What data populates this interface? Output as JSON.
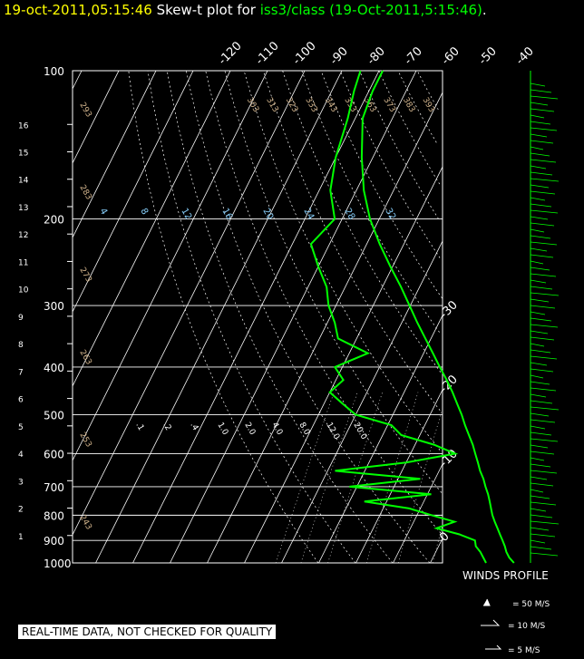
{
  "title": {
    "timestamp": "19-oct-2011,05:15:46",
    "mid": "Skew-t plot for",
    "station": "iss3/class (19-Oct-2011,5:15:46)",
    "end": "."
  },
  "footer": "REAL-TIME DATA, NOT CHECKED FOR QUALITY",
  "winds_profile_label": "WINDS PROFILE",
  "wind_legend": [
    "= 50 M/S",
    "= 10 M/S",
    "= 5 M/S"
  ],
  "colors": {
    "background": "#000000",
    "trace": "#00ff00",
    "title_time": "#ffff00",
    "mixing_ratio_labels": "#87cefa",
    "theta_labels": "#d2b48c",
    "grid": "#ffffff"
  },
  "chart_data": {
    "type": "line",
    "name": "skew-t",
    "pressure_ticks": [
      100,
      200,
      300,
      400,
      500,
      600,
      700,
      800,
      900,
      1000
    ],
    "height_ticks_km": [
      1,
      2,
      3,
      4,
      5,
      6,
      7,
      8,
      9,
      10,
      11,
      12,
      13,
      14,
      15,
      16
    ],
    "top_temp_ticks": [
      "-120",
      "-110",
      "-100",
      "-90",
      "-80",
      "-70",
      "-60",
      "-50",
      "-40"
    ],
    "right_temp_ticks": [
      "-30",
      "-20",
      "-10",
      "0",
      "10",
      "20",
      "30",
      "40"
    ],
    "theta_labels": [
      "303",
      "313",
      "323",
      "333",
      "343",
      "353",
      "363",
      "373",
      "383",
      "393",
      "403",
      "413",
      "423",
      "433",
      "293",
      "283",
      "273",
      "263",
      "253",
      "243"
    ],
    "mixing_ratio_labels": [
      "4",
      "8",
      "12",
      "16",
      "20",
      "24",
      "28",
      "32"
    ],
    "sat_mixing_labels": [
      ".1",
      ".2",
      ".4",
      "1.0",
      "2.0",
      "4.0",
      "8.0",
      "12.0",
      "20.0"
    ],
    "temperature": {
      "p": [
        1000,
        975,
        950,
        925,
        900,
        875,
        850,
        825,
        800,
        775,
        750,
        725,
        700,
        675,
        650,
        625,
        600,
        575,
        550,
        525,
        500,
        475,
        450,
        425,
        400,
        375,
        350,
        325,
        300,
        275,
        250,
        225,
        200,
        175,
        150,
        125,
        110,
        100
      ],
      "t": [
        22.5,
        20.5,
        19,
        17.8,
        16.4,
        14.9,
        13.4,
        11.8,
        10.3,
        9,
        7.7,
        6.3,
        4.6,
        3,
        1,
        -0.7,
        -2.6,
        -4.5,
        -6.8,
        -9.2,
        -11.5,
        -14.2,
        -17,
        -20.2,
        -23.8,
        -27.5,
        -31.5,
        -35.8,
        -40.2,
        -45,
        -50.6,
        -56.5,
        -62.5,
        -68,
        -73,
        -78,
        -79,
        -79
      ]
    },
    "dewpoint": {
      "p": [
        1000,
        950,
        925,
        900,
        875,
        850,
        825,
        800,
        775,
        750,
        725,
        700,
        675,
        650,
        625,
        600,
        575,
        550,
        525,
        500,
        475,
        450,
        425,
        400,
        375,
        350,
        325,
        300,
        275,
        250,
        225,
        200,
        175,
        150,
        125,
        110,
        100
      ],
      "td": [
        15,
        12,
        10,
        9,
        4,
        -3,
        1,
        -6,
        -13,
        -26,
        -9,
        -32,
        -14,
        -38,
        -20,
        -8,
        -15,
        -25,
        -29,
        -40,
        -45,
        -50,
        -48,
        -52,
        -45,
        -55,
        -58,
        -62,
        -65,
        -70,
        -75,
        -72,
        -77,
        -80,
        -82,
        -84,
        -85
      ]
    }
  }
}
